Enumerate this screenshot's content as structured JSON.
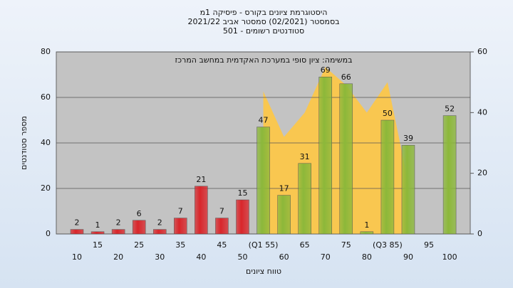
{
  "chart_data": {
    "type": "bar",
    "title": "היסטוגרמת ציונים בקורס - פיסיקה 1מ",
    "subtitle": "בסמסטר  (02/2021)  סמסטר אביב 2021/22",
    "subtitle2": "סטודנטים רשומים - 501",
    "annotation": "במשימה: ציון סופי במערכת האקדמית במחשב המרכז",
    "ylabel": "מספר סטודנטים",
    "xlabel": "טווח ציונים",
    "categories": [
      "10",
      "15",
      "20",
      "25",
      "30",
      "35",
      "40",
      "45",
      "50",
      "(Q1 55)",
      "60",
      "65",
      "70",
      "75",
      "80",
      "(Q3 85)",
      "90",
      "95",
      "100"
    ],
    "series": [
      {
        "values": [
          2,
          1,
          2,
          6,
          2,
          7,
          21,
          7,
          15,
          47,
          17,
          31,
          69,
          66,
          1,
          50,
          39,
          null,
          52
        ],
        "colors": [
          "#d9262b",
          "#d9262b",
          "#d9262b",
          "#d9262b",
          "#d9262b",
          "#d9262b",
          "#d9262b",
          "#d9262b",
          "#d9262b",
          "#8cb83a",
          "#8cb83a",
          "#8cb83a",
          "#8cb83a",
          "#8cb83a",
          "#8cb83a",
          "#8cb83a",
          "#8cb83a",
          "#8cb83a",
          "#8cb83a"
        ]
      },
      {
        "type": "area",
        "axis": "y2",
        "color": "#ffc844",
        "values": [
          null,
          null,
          null,
          null,
          null,
          null,
          null,
          null,
          null,
          47,
          32,
          40,
          55,
          49,
          40,
          50,
          17,
          null,
          null
        ]
      }
    ],
    "ylim": [
      0,
      80
    ],
    "yticks": [
      0,
      20,
      40,
      60,
      80
    ],
    "y2lim": [
      0,
      60
    ],
    "y2ticks": [
      0,
      20,
      40,
      60
    ],
    "grid": true
  }
}
